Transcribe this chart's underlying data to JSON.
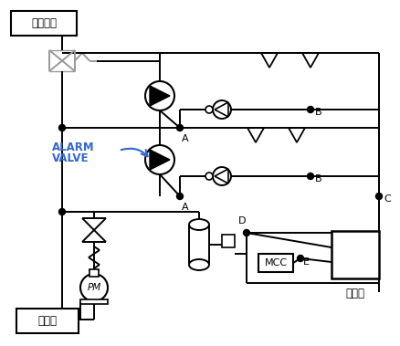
{
  "background_color": "#ffffff",
  "line_color": "#000000",
  "blue_color": "#3366cc",
  "gray_color": "#999999",
  "text_labels": {
    "gogasuju": "고가수조",
    "jeosuju": "저수조",
    "alarm_valve1": "ALARM",
    "alarm_valve2": "VALVE",
    "sushinban": "수신반",
    "mcc": "MCC",
    "pm": "PM",
    "A1": "A",
    "A2": "A",
    "B1": "B",
    "B2": "B",
    "C": "C",
    "D": "D",
    "E": "E"
  },
  "figsize": [
    4.39,
    3.79
  ],
  "dpi": 100
}
